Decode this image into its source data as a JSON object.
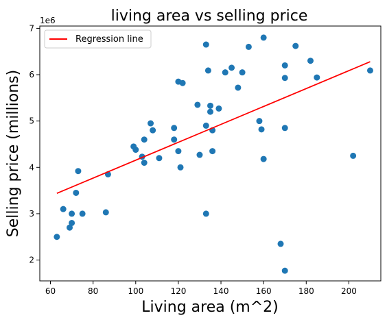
{
  "chart_data": {
    "type": "scatter",
    "title": "living area vs selling price",
    "xlabel": "Living area (m^2)",
    "ylabel": "Selling price (millions)",
    "offset_label": "1e6",
    "xlim": [
      55,
      215
    ],
    "ylim": [
      1.55,
      7.05
    ],
    "xticks": [
      60,
      80,
      100,
      120,
      140,
      160,
      180,
      200
    ],
    "yticks": [
      2,
      3,
      4,
      5,
      6,
      7
    ],
    "grid": false,
    "legend": {
      "position": "top-left",
      "entries": [
        "Regression line"
      ]
    },
    "colors": {
      "points": "#1f77b4",
      "line": "#ff0000"
    },
    "regression": {
      "name": "Regression line",
      "x": [
        63,
        210
      ],
      "y": [
        3.44,
        6.28
      ]
    },
    "points": [
      {
        "x": 63,
        "y": 2.5
      },
      {
        "x": 66,
        "y": 3.1
      },
      {
        "x": 69,
        "y": 2.7
      },
      {
        "x": 70,
        "y": 2.8
      },
      {
        "x": 70,
        "y": 3.0
      },
      {
        "x": 72,
        "y": 3.45
      },
      {
        "x": 73,
        "y": 3.92
      },
      {
        "x": 75,
        "y": 3.0
      },
      {
        "x": 86,
        "y": 3.03
      },
      {
        "x": 87,
        "y": 3.85
      },
      {
        "x": 99,
        "y": 4.45
      },
      {
        "x": 100,
        "y": 4.38
      },
      {
        "x": 103,
        "y": 4.23
      },
      {
        "x": 104,
        "y": 4.6
      },
      {
        "x": 104,
        "y": 4.1
      },
      {
        "x": 107,
        "y": 4.95
      },
      {
        "x": 108,
        "y": 4.8
      },
      {
        "x": 111,
        "y": 4.2
      },
      {
        "x": 118,
        "y": 4.85
      },
      {
        "x": 118,
        "y": 4.6
      },
      {
        "x": 120,
        "y": 5.85
      },
      {
        "x": 120,
        "y": 4.35
      },
      {
        "x": 121,
        "y": 4.0
      },
      {
        "x": 122,
        "y": 5.82
      },
      {
        "x": 129,
        "y": 5.35
      },
      {
        "x": 130,
        "y": 4.27
      },
      {
        "x": 133,
        "y": 6.65
      },
      {
        "x": 133,
        "y": 4.9
      },
      {
        "x": 133,
        "y": 3.0
      },
      {
        "x": 134,
        "y": 6.09
      },
      {
        "x": 135,
        "y": 5.33
      },
      {
        "x": 135,
        "y": 5.2
      },
      {
        "x": 136,
        "y": 4.8
      },
      {
        "x": 136,
        "y": 4.35
      },
      {
        "x": 139,
        "y": 5.27
      },
      {
        "x": 142,
        "y": 6.05
      },
      {
        "x": 145,
        "y": 6.15
      },
      {
        "x": 148,
        "y": 5.72
      },
      {
        "x": 150,
        "y": 6.05
      },
      {
        "x": 153,
        "y": 6.6
      },
      {
        "x": 158,
        "y": 5.0
      },
      {
        "x": 159,
        "y": 4.82
      },
      {
        "x": 160,
        "y": 6.8
      },
      {
        "x": 160,
        "y": 4.18
      },
      {
        "x": 168,
        "y": 2.35
      },
      {
        "x": 170,
        "y": 6.2
      },
      {
        "x": 170,
        "y": 5.93
      },
      {
        "x": 170,
        "y": 4.85
      },
      {
        "x": 170,
        "y": 1.77
      },
      {
        "x": 175,
        "y": 6.62
      },
      {
        "x": 182,
        "y": 6.3
      },
      {
        "x": 185,
        "y": 5.94
      },
      {
        "x": 202,
        "y": 4.25
      },
      {
        "x": 210,
        "y": 6.09
      }
    ]
  }
}
